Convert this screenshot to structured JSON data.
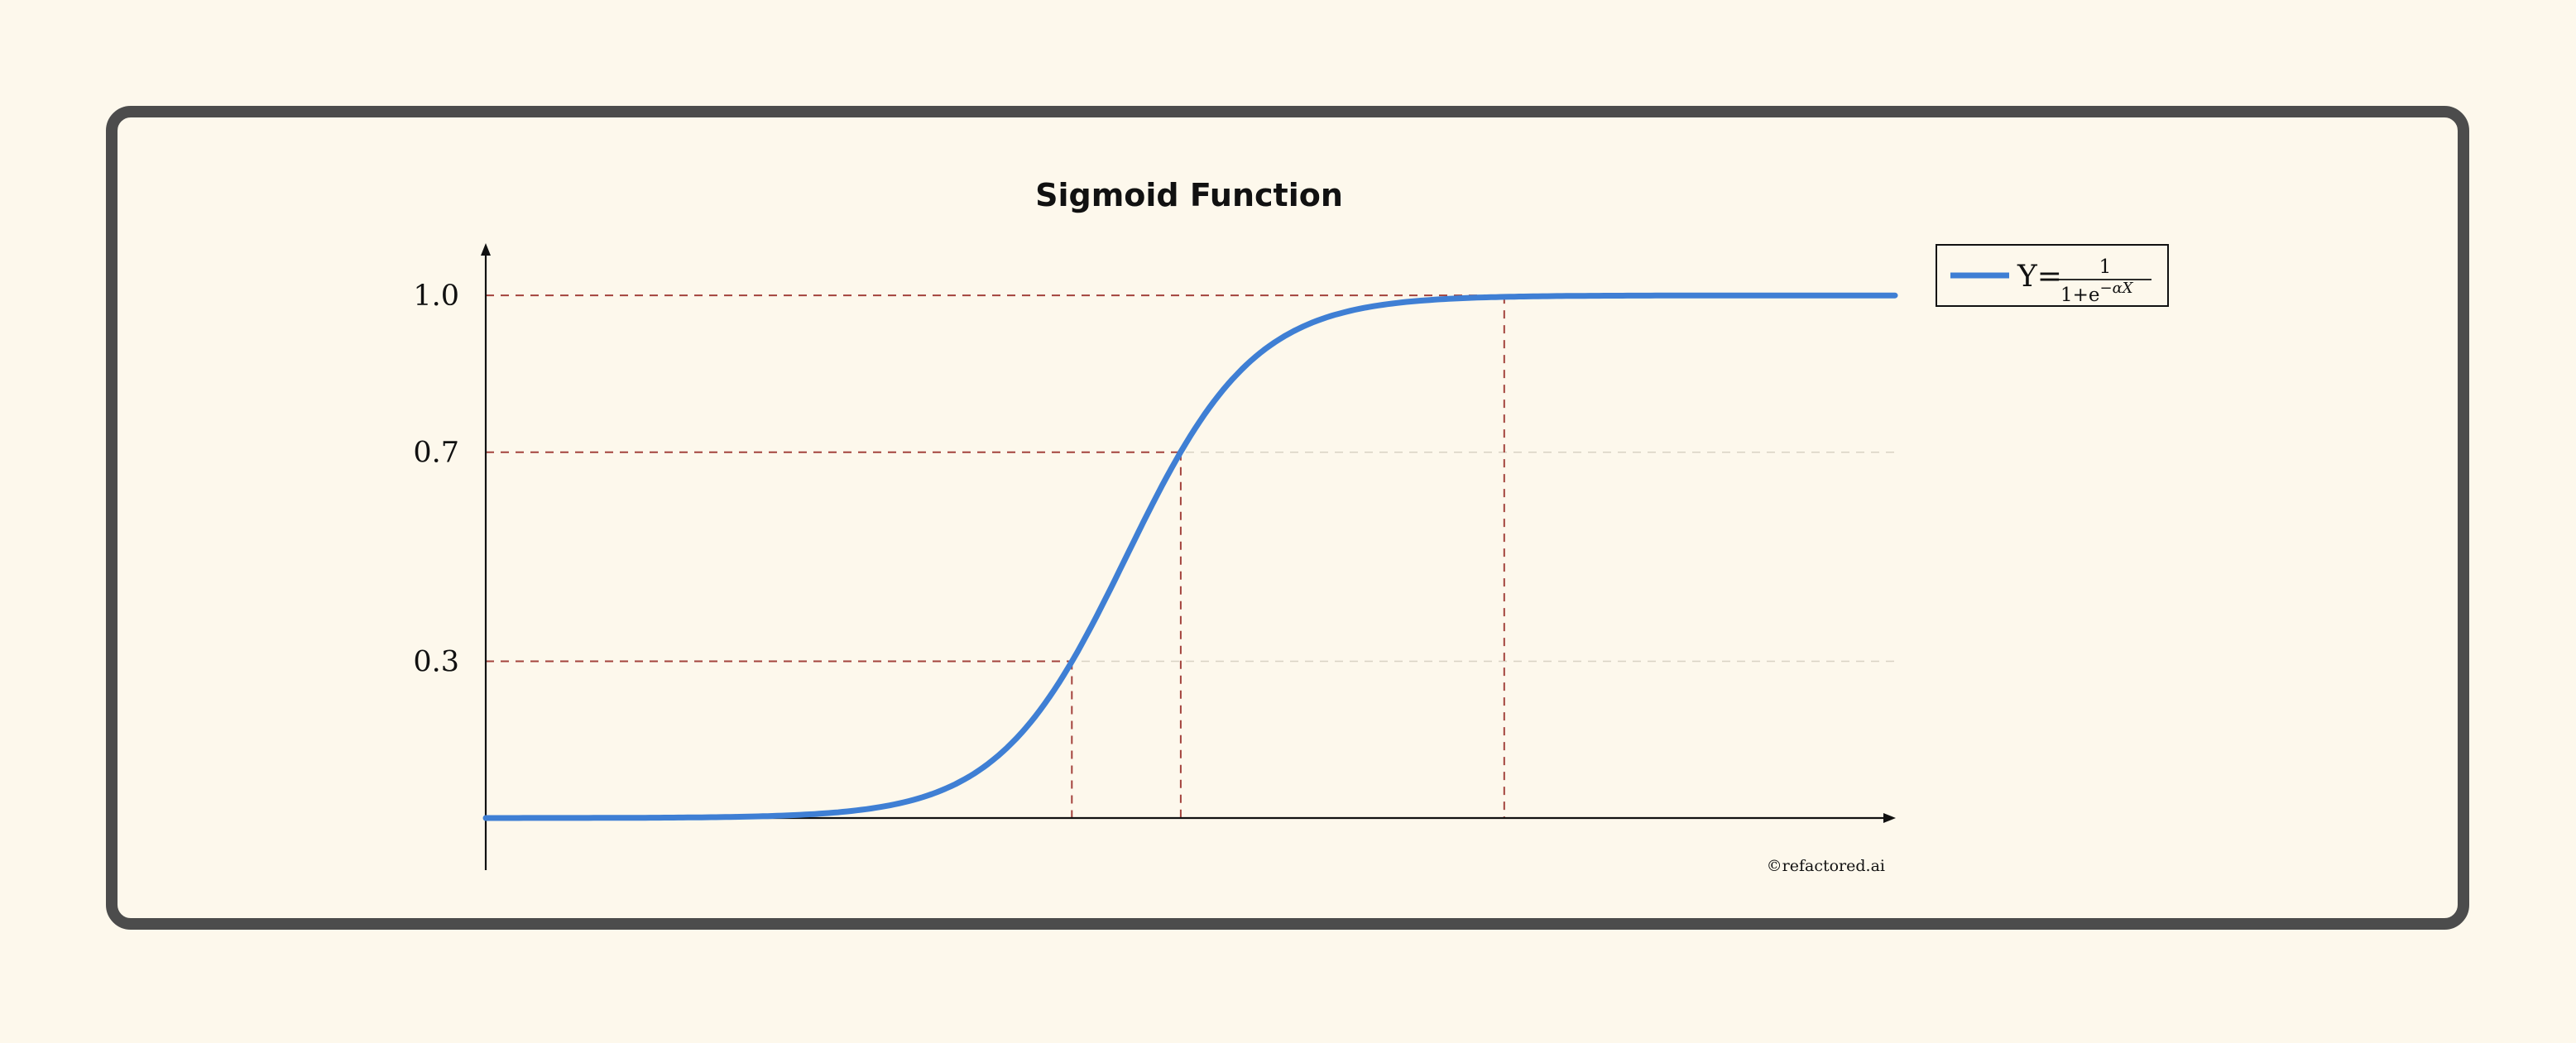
{
  "chart_data": {
    "type": "line",
    "title": "Sigmoid Function",
    "xlabel": "",
    "ylabel": "",
    "xlim": [
      -10,
      12
    ],
    "ylim": [
      0,
      1.1
    ],
    "x_ticks": [],
    "y_ticks": [
      "0.3",
      "0.7",
      "1.0"
    ],
    "grid": "dashed lines at y = 0.3, 0.7, 1.0",
    "legend": {
      "position": "right",
      "entries": [
        {
          "label_prefix": "Y=",
          "numerator": "1",
          "denominator": "1+e",
          "exponent": "−αX"
        }
      ]
    },
    "series": [
      {
        "color": "#3f7fd4",
        "function": "Y = 1 / (1 + e^(-X))",
        "x": [
          -10,
          -8,
          -6,
          -4,
          -3,
          -2,
          -1.5,
          -1,
          -0.5,
          0,
          0.5,
          1,
          1.5,
          2,
          3,
          4,
          5,
          6,
          8,
          10,
          12
        ],
        "y": [
          0.0,
          0.0003,
          0.0025,
          0.018,
          0.047,
          0.119,
          0.182,
          0.269,
          0.378,
          0.5,
          0.622,
          0.731,
          0.818,
          0.881,
          0.953,
          0.982,
          0.993,
          0.998,
          0.9997,
          1.0,
          1.0
        ]
      }
    ],
    "reference_points": [
      {
        "x": -0.85,
        "y": 0.3
      },
      {
        "x": 0.85,
        "y": 0.7
      },
      {
        "x": 5.9,
        "y": 1.0
      }
    ],
    "reference_color": "#a3423c",
    "annotation": "©refactored.ai"
  }
}
